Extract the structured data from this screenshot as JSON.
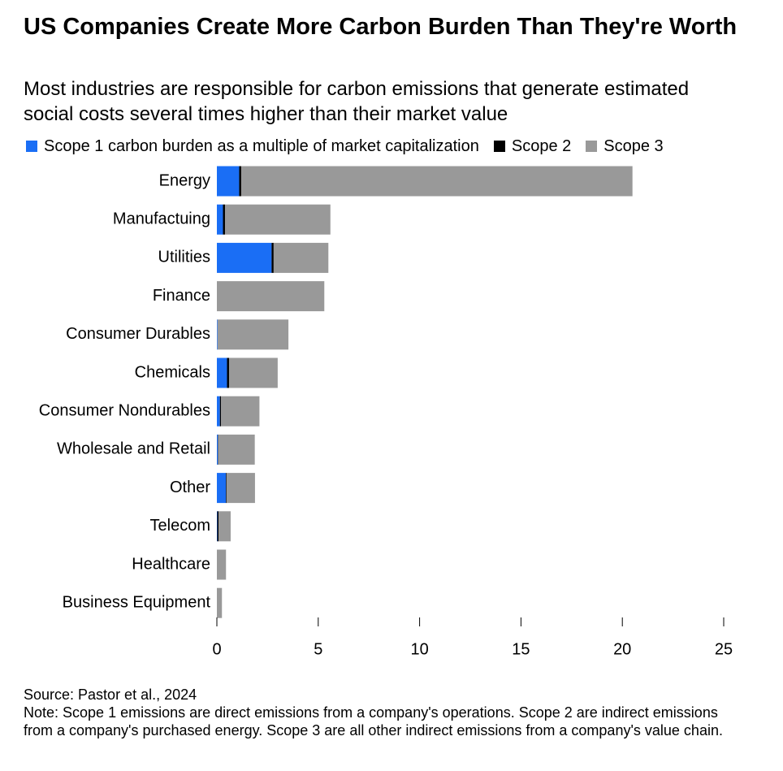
{
  "chart_data": {
    "type": "stacked-barh",
    "title": "US Companies Create More Carbon Burden Than They're Worth",
    "subtitle": "Most industries are responsible for carbon emissions that generate estimated social costs several times higher than their market value",
    "categories": [
      "Energy",
      "Manufactuing",
      "Utilities",
      "Finance",
      "Consumer Durables",
      "Chemicals",
      "Consumer Nondurables",
      "Wholesale and Retail",
      "Other",
      "Telecom",
      "Healthcare",
      "Business Equipment"
    ],
    "series": [
      {
        "name": "Scope 1 carbon burden as a multiple of market capitalization",
        "color": "#1a6ef5",
        "values": [
          1.1,
          0.3,
          2.7,
          0,
          0.03,
          0.5,
          0.15,
          0.05,
          0.45,
          0.02,
          0,
          0
        ]
      },
      {
        "name": "Scope 2",
        "color": "#000000",
        "values": [
          0.1,
          0.1,
          0.1,
          0,
          0,
          0.1,
          0.05,
          0.02,
          0.03,
          0.06,
          0,
          0
        ]
      },
      {
        "name": "Scope 3",
        "color": "#999999",
        "values": [
          19.3,
          5.2,
          2.7,
          5.3,
          3.5,
          2.4,
          1.9,
          1.8,
          1.4,
          0.6,
          0.45,
          0.25
        ]
      }
    ],
    "xlim": [
      0,
      25
    ],
    "xticks": [
      0,
      5,
      10,
      15,
      20,
      25
    ],
    "grid": false,
    "source": "Source: Pastor et al., 2024",
    "note": "Note: Scope 1 emissions are direct emissions from a company's operations. Scope 2 are indirect emissions from a company's purchased energy. Scope 3 are all other indirect emissions from a company's value chain."
  }
}
